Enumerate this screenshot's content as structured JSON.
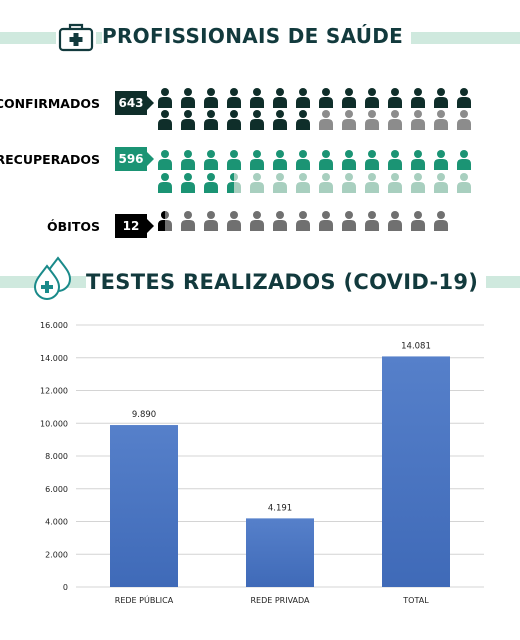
{
  "section1": {
    "title": "PROFISSIONAIS DE SAÚDE",
    "icon": "medical-kit-icon"
  },
  "stats": [
    {
      "key": "confirmados",
      "label": "CONFIRMADOS",
      "value": "643",
      "badge_color": "#0f2e2a",
      "label_color": "#111111",
      "filled_color": "#0f2e2a",
      "empty_color": "#8c8c8c",
      "filled_icons": 21,
      "total_icons": 28
    },
    {
      "key": "recuperados",
      "label": "RECUPERADOS",
      "value": "596",
      "badge_color": "#1b9474",
      "label_color": "#1b9474",
      "filled_color": "#1b9474",
      "empty_color": "#a8cfbf",
      "filled_icons": 17.5,
      "total_icons": 28
    },
    {
      "key": "obitos",
      "label": "ÓBITOS",
      "value": "12",
      "badge_color": "#000000",
      "label_color": "#111111",
      "filled_color": "#000000",
      "empty_color": "#707070",
      "filled_icons": 0.5,
      "total_icons": 13
    }
  ],
  "section2": {
    "title": "TESTES REALIZADOS (COVID-19)",
    "icon": "test-drop-icon"
  },
  "chart_data": {
    "type": "bar",
    "categories": [
      "REDE PÚBLICA",
      "REDE PRIVADA",
      "TOTAL"
    ],
    "values": [
      9890,
      4191,
      14081
    ],
    "value_labels": [
      "9.890",
      "4.191",
      "14.081"
    ],
    "ylim": [
      0,
      16000
    ],
    "yticks": [
      0,
      2000,
      4000,
      6000,
      8000,
      10000,
      12000,
      14000,
      16000
    ],
    "ytick_labels": [
      "0",
      "2.000",
      "4.000",
      "6.000",
      "8.000",
      "10.000",
      "12.000",
      "14.000",
      "16.000"
    ],
    "grid": true,
    "bar_color": "#4774c4",
    "title": "",
    "xlabel": "",
    "ylabel": ""
  }
}
